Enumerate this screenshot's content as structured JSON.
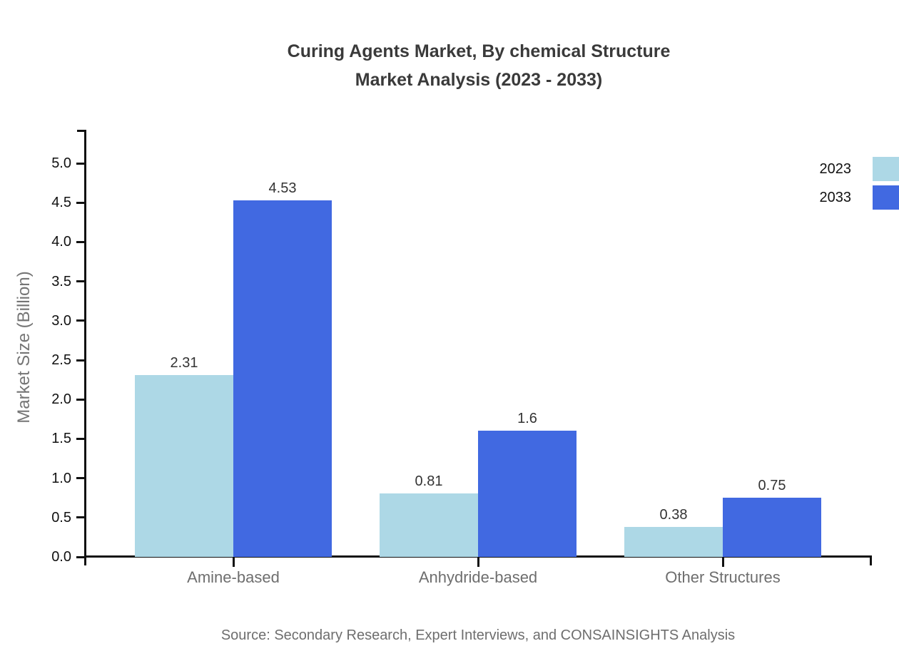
{
  "title": {
    "line1": "Curing Agents Market, By chemical Structure",
    "line2": "Market Analysis (2023 - 2033)"
  },
  "source": "Source: Secondary Research, Expert Interviews, and CONSAINSIGHTS Analysis",
  "chart_data": {
    "type": "bar",
    "title": "Curing Agents Market, By chemical Structure Market Analysis (2023 - 2033)",
    "categories": [
      "Amine-based",
      "Anhydride-based",
      "Other Structures"
    ],
    "series": [
      {
        "name": "2023",
        "color": "#ADD8E6",
        "values": [
          2.31,
          0.81,
          0.38
        ]
      },
      {
        "name": "2033",
        "color": "#4169E1",
        "values": [
          4.53,
          1.6,
          0.75
        ]
      }
    ],
    "xlabel": "",
    "ylabel": "Market Size (Billion)",
    "ylim": [
      0,
      5.5
    ],
    "yticks": [
      0,
      0.5,
      1,
      1.5,
      2,
      2.5,
      3,
      3.5,
      4,
      4.5,
      5
    ],
    "grid": false,
    "value_labels": true,
    "legend_position": "top-right",
    "colors": {
      "axis": "#111111",
      "title_text": "#3a3a3a",
      "tick_text": "#111111",
      "category_text": "#6e6e6e",
      "value_text": "#333333",
      "source_text": "#6e6e6e"
    }
  }
}
